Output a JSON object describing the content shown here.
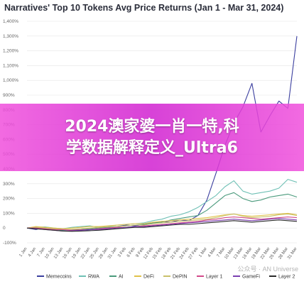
{
  "chart_data": {
    "type": "line",
    "title": "Narratives' Top 10 Tokens Avg Price Returns (Jan 1 - Mar 31, 2024)",
    "ylim": [
      -100,
      1400
    ],
    "yticks": [
      "1,400%",
      "1,300%",
      "1,200%",
      "1,100%",
      "1,000%",
      "900%",
      "800%",
      "700%",
      "600%",
      "500%",
      "400%",
      "300%",
      "200%",
      "100%",
      "0",
      "-100%"
    ],
    "ytick_values": [
      1400,
      1300,
      1200,
      1100,
      1000,
      900,
      800,
      700,
      600,
      500,
      400,
      300,
      200,
      100,
      0,
      -100
    ],
    "categories": [
      "1 Jan",
      "4 Jan",
      "7 Jan",
      "10 Jan",
      "13 Jan",
      "16 Jan",
      "19 Jan",
      "22 Jan",
      "25 Jan",
      "28 Jan",
      "31 Jan",
      "3 Feb",
      "6 Feb",
      "9 Feb",
      "12 Feb",
      "15 Feb",
      "18 Feb",
      "21 Feb",
      "24 Feb",
      "27 Feb",
      "1 Mar",
      "4 Mar",
      "7 Mar",
      "10 Mar",
      "13 Mar",
      "16 Mar",
      "19 Mar",
      "22 Mar",
      "25 Mar",
      "28 Mar",
      "31 Mar"
    ],
    "legend_position": "bottom",
    "series": [
      {
        "name": "Memecoins",
        "color": "#3b3f9f",
        "values": [
          0,
          -10,
          5,
          -5,
          -15,
          -10,
          -15,
          -12,
          -8,
          -5,
          10,
          20,
          15,
          25,
          30,
          45,
          40,
          55,
          50,
          85,
          190,
          370,
          560,
          710,
          820,
          980,
          650,
          760,
          860,
          810,
          1300
        ]
      },
      {
        "name": "RWA",
        "color": "#6fc0b5",
        "values": [
          0,
          5,
          8,
          0,
          -5,
          5,
          10,
          15,
          5,
          10,
          20,
          25,
          30,
          35,
          50,
          60,
          80,
          90,
          110,
          140,
          180,
          220,
          280,
          320,
          250,
          230,
          240,
          250,
          270,
          330,
          310
        ]
      },
      {
        "name": "AI",
        "color": "#4a9a7c",
        "values": [
          0,
          0,
          -5,
          -10,
          -15,
          -12,
          -10,
          -5,
          0,
          5,
          10,
          15,
          20,
          25,
          35,
          40,
          55,
          65,
          75,
          85,
          120,
          170,
          220,
          240,
          200,
          180,
          190,
          210,
          220,
          230,
          210
        ]
      },
      {
        "name": "DeFi",
        "color": "#e0c24a",
        "values": [
          0,
          10,
          5,
          0,
          -5,
          0,
          5,
          10,
          10,
          15,
          20,
          25,
          30,
          30,
          40,
          45,
          50,
          55,
          60,
          65,
          70,
          80,
          90,
          95,
          85,
          80,
          85,
          90,
          95,
          100,
          90
        ]
      },
      {
        "name": "DePIN",
        "color": "#c9c06a",
        "values": [
          0,
          5,
          0,
          -5,
          -10,
          -8,
          -5,
          0,
          5,
          8,
          10,
          15,
          20,
          20,
          30,
          35,
          40,
          45,
          50,
          55,
          60,
          70,
          85,
          95,
          80,
          70,
          75,
          80,
          90,
          95,
          85
        ]
      },
      {
        "name": "Layer 1",
        "color": "#d24a8a",
        "values": [
          0,
          0,
          -5,
          -10,
          -10,
          -15,
          -12,
          -10,
          -5,
          0,
          5,
          5,
          10,
          15,
          20,
          25,
          30,
          35,
          40,
          45,
          55,
          60,
          70,
          75,
          70,
          65,
          60,
          65,
          70,
          75,
          70
        ]
      },
      {
        "name": "GameFi",
        "color": "#7a3fb0",
        "values": [
          0,
          -5,
          -10,
          -15,
          -20,
          -18,
          -15,
          -10,
          -10,
          -5,
          0,
          5,
          10,
          10,
          15,
          20,
          25,
          30,
          35,
          40,
          45,
          50,
          55,
          60,
          55,
          50,
          55,
          60,
          65,
          60,
          55
        ]
      },
      {
        "name": "Layer 2",
        "color": "#2a2a2a",
        "values": [
          0,
          -5,
          -10,
          -15,
          -20,
          -22,
          -20,
          -18,
          -15,
          -10,
          -5,
          0,
          5,
          5,
          10,
          15,
          20,
          25,
          25,
          30,
          35,
          40,
          45,
          50,
          45,
          40,
          45,
          50,
          55,
          50,
          45
        ]
      }
    ]
  },
  "overlay": {
    "line1": "2024澳家婆一肖一特,科",
    "line2": "学数据解释定义_Ultra6"
  },
  "watermark": "公众号 · AN Universe"
}
